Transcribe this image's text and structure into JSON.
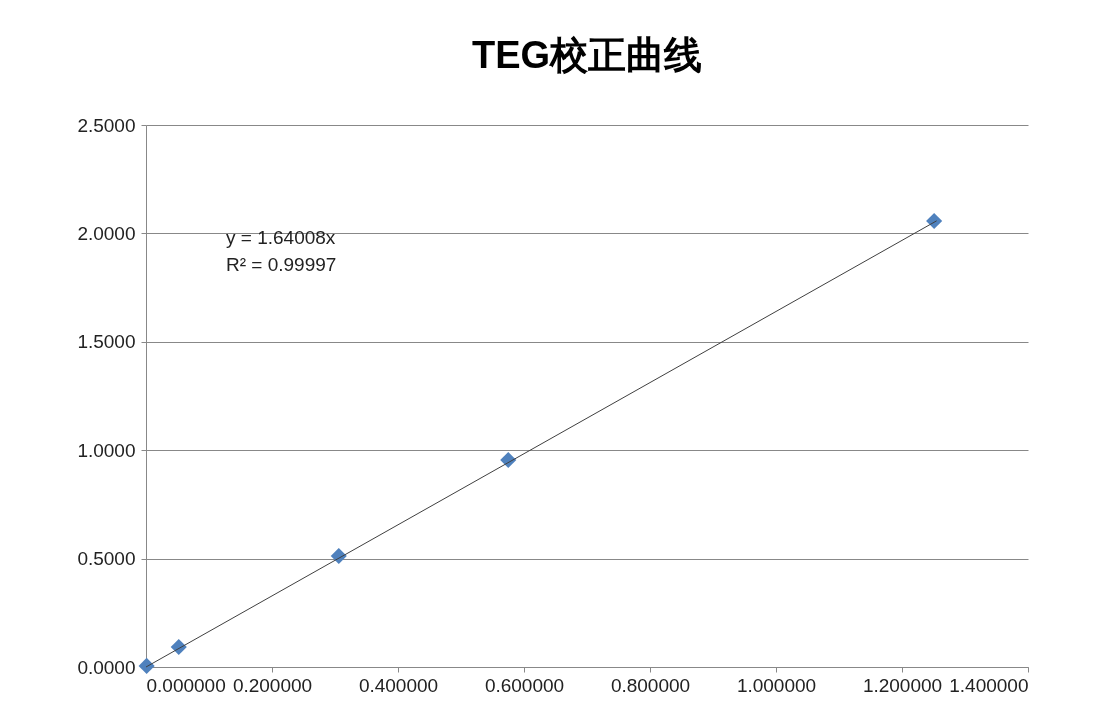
{
  "chart_data": {
    "type": "scatter",
    "title": "TEG校正曲线",
    "series": [
      {
        "type": "scatter",
        "color": "#4f81bd",
        "marker": "diamond",
        "x": [
          0.001,
          0.052,
          0.306,
          0.575,
          1.251
        ],
        "values": [
          0.005,
          0.092,
          0.512,
          0.955,
          2.057
        ]
      },
      {
        "type": "line",
        "color": "#404040",
        "marker": "none",
        "x": [
          0,
          1.255
        ],
        "values": [
          0,
          2.058
        ]
      }
    ],
    "xlim": [
      0,
      1.4
    ],
    "ylim": [
      0,
      2.5
    ],
    "xticks": [
      {
        "value": 0,
        "label": "0.000000"
      },
      {
        "value": 0.2,
        "label": "0.200000"
      },
      {
        "value": 0.4,
        "label": "0.400000"
      },
      {
        "value": 0.6,
        "label": "0.600000"
      },
      {
        "value": 0.8,
        "label": "0.800000"
      },
      {
        "value": 1,
        "label": "1.000000"
      },
      {
        "value": 1.2,
        "label": "1.200000"
      },
      {
        "value": 1.4,
        "label": "1.400000"
      }
    ],
    "yticks": [
      {
        "value": 0,
        "label": "0.0000"
      },
      {
        "value": 0.5,
        "label": "0.5000"
      },
      {
        "value": 1,
        "label": "1.0000"
      },
      {
        "value": 1.5,
        "label": "1.5000"
      },
      {
        "value": 2,
        "label": "2.0000"
      },
      {
        "value": 2.5,
        "label": "2.5000"
      }
    ],
    "grid": "y",
    "annotations": [
      "y = 1.64008x",
      "R² = 0.99997"
    ]
  }
}
